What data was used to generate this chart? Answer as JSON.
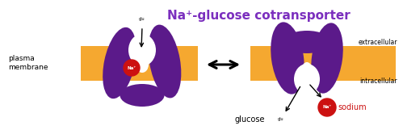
{
  "bg_color": "#ffffff",
  "membrane_color": "#f5a830",
  "protein_color": "#5b1a8a",
  "sodium_color": "#cc1111",
  "title": "Na⁺-glucose cotransporter",
  "title_color": "#7b2fbe",
  "plasma_membrane_text": "plasma\nmembrane",
  "extracellular_text": "extracellular",
  "intracellular_text": "intracellular",
  "sodium_text": "sodium",
  "glucose_text": "glucose"
}
